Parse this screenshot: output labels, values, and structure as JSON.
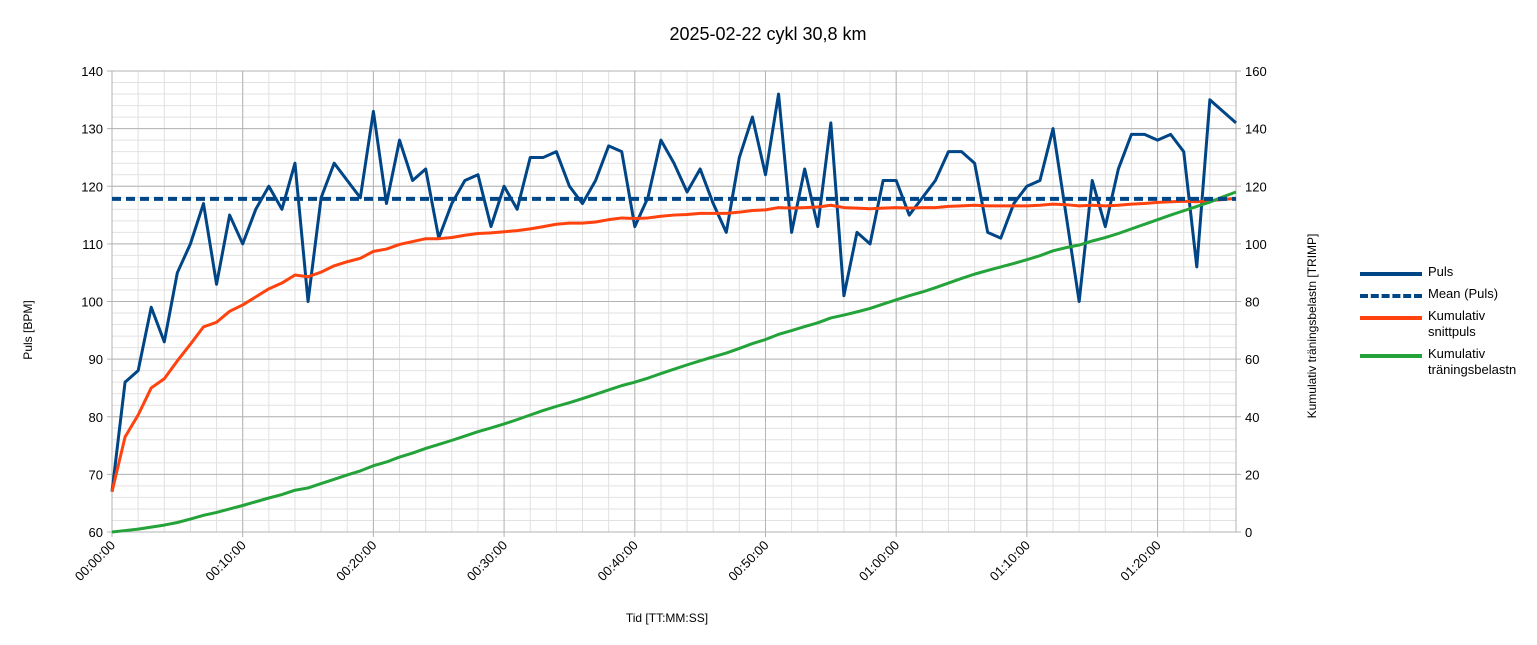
{
  "chart_data": {
    "type": "line",
    "title": "2025-02-22 cykl 30,8 km",
    "xlabel": "Tid [TT:MM:SS]",
    "ylabel": "Puls [BPM]",
    "y2label": "Kumulativ träningsbelastn [TRIMP]",
    "x": [
      0,
      1,
      2,
      3,
      4,
      5,
      6,
      7,
      8,
      9,
      10,
      11,
      12,
      13,
      14,
      15,
      16,
      17,
      18,
      19,
      20,
      21,
      22,
      23,
      24,
      25,
      26,
      27,
      28,
      29,
      30,
      31,
      32,
      33,
      34,
      35,
      36,
      37,
      38,
      39,
      40,
      41,
      42,
      43,
      44,
      45,
      46,
      47,
      48,
      49,
      50,
      51,
      52,
      53,
      54,
      55,
      56,
      57,
      58,
      59,
      60,
      61,
      62,
      63,
      64,
      65,
      66,
      67,
      68,
      69,
      70,
      71,
      72,
      73,
      74,
      75,
      76,
      77,
      78,
      79,
      80,
      81,
      82,
      83,
      84,
      85,
      86
    ],
    "series": [
      {
        "name": "Puls",
        "color": "#004586",
        "axis": "y",
        "values": [
          67,
          86,
          88,
          99,
          93,
          105,
          110,
          117,
          103,
          115,
          110,
          116,
          120,
          116,
          124,
          100,
          118,
          124,
          121,
          118,
          133,
          117,
          128,
          121,
          123,
          111,
          117,
          121,
          122,
          113,
          120,
          116,
          125,
          125,
          126,
          120,
          117,
          121,
          127,
          126,
          113,
          118,
          128,
          124,
          119,
          123,
          117,
          112,
          125,
          132,
          122,
          136,
          112,
          123,
          113,
          131,
          101,
          112,
          110,
          121,
          121,
          115,
          118,
          121,
          126,
          126,
          124,
          112,
          111,
          117,
          120,
          121,
          130,
          115,
          100,
          121,
          113,
          123,
          129,
          129,
          128,
          129,
          126,
          106,
          135,
          133,
          131
        ]
      },
      {
        "name": "Kumulativ snittpuls",
        "color": "#ff420e",
        "axis": "y",
        "values": [
          67.0,
          76.5,
          80.3,
          85.0,
          86.6,
          89.7,
          92.6,
          95.6,
          96.4,
          98.3,
          99.4,
          100.8,
          102.2,
          103.2,
          104.6,
          104.3,
          105.1,
          106.2,
          106.9,
          107.5,
          108.7,
          109.1,
          109.9,
          110.4,
          110.9,
          110.9,
          111.1,
          111.5,
          111.8,
          111.9,
          112.1,
          112.3,
          112.6,
          113.0,
          113.4,
          113.6,
          113.6,
          113.8,
          114.2,
          114.5,
          114.4,
          114.5,
          114.8,
          115.0,
          115.1,
          115.3,
          115.3,
          115.3,
          115.5,
          115.8,
          115.9,
          116.3,
          116.2,
          116.3,
          116.4,
          116.7,
          116.3,
          116.2,
          116.1,
          116.2,
          116.3,
          116.2,
          116.3,
          116.3,
          116.5,
          116.6,
          116.7,
          116.6,
          116.6,
          116.6,
          116.6,
          116.7,
          116.9,
          116.8,
          116.6,
          116.7,
          116.6,
          116.7,
          116.9,
          117.0,
          117.2,
          117.3,
          117.4,
          117.3,
          117.5,
          117.7,
          117.9
        ]
      },
      {
        "name": "Kumulativ träningsbelastn",
        "color": "#23a33a",
        "axis": "y2",
        "values": [
          0,
          0.5,
          1,
          1.7,
          2.4,
          3.3,
          4.5,
          5.8,
          6.8,
          8,
          9.2,
          10.5,
          11.8,
          13,
          14.5,
          15.3,
          16.8,
          18.3,
          19.8,
          21.2,
          23,
          24.3,
          26,
          27.4,
          29,
          30.4,
          31.8,
          33.3,
          34.8,
          36.1,
          37.5,
          39,
          40.6,
          42.2,
          43.6,
          44.9,
          46.3,
          47.8,
          49.3,
          50.8,
          52,
          53.4,
          55,
          56.5,
          58,
          59.4,
          60.8,
          62.1,
          63.7,
          65.4,
          66.8,
          68.6,
          69.9,
          71.3,
          72.6,
          74.3,
          75.3,
          76.4,
          77.6,
          79.1,
          80.6,
          82,
          83.3,
          84.8,
          86.4,
          88,
          89.5,
          90.8,
          92,
          93.2,
          94.5,
          95.9,
          97.6,
          98.7,
          99.6,
          101,
          102.2,
          103.6,
          105.2,
          106.8,
          108.4,
          110,
          111.5,
          113,
          114.5,
          116.3,
          118
        ]
      }
    ],
    "reference_lines": [
      {
        "name": "Mean (Puls)",
        "value": 117.8,
        "color": "#004586",
        "dashed": true
      }
    ],
    "xlim": [
      0,
      86
    ],
    "xticks": [
      {
        "value": 0,
        "label": "00:00:00"
      },
      {
        "value": 10,
        "label": "00:10:00"
      },
      {
        "value": 20,
        "label": "00:20:00"
      },
      {
        "value": 30,
        "label": "00:30:00"
      },
      {
        "value": 40,
        "label": "00:40:00"
      },
      {
        "value": 50,
        "label": "00:50:00"
      },
      {
        "value": 60,
        "label": "01:00:00"
      },
      {
        "value": 70,
        "label": "01:10:00"
      },
      {
        "value": 80,
        "label": "01:20:00"
      }
    ],
    "ylim": [
      60,
      140
    ],
    "yticks": [
      60,
      70,
      80,
      90,
      100,
      110,
      120,
      130,
      140
    ],
    "y2lim": [
      0,
      160
    ],
    "y2ticks": [
      0,
      20,
      40,
      60,
      80,
      100,
      120,
      140,
      160
    ],
    "grid": true,
    "minor_grid": true,
    "legend": "right"
  }
}
